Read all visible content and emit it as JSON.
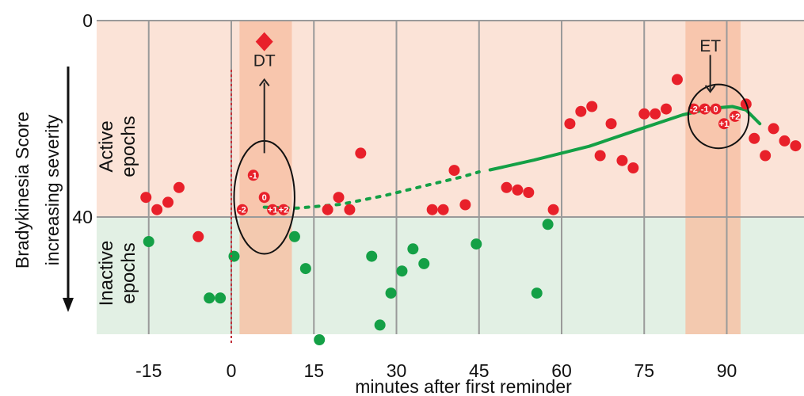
{
  "chart_data": {
    "type": "scatter",
    "xlabel": "minutes after first reminder",
    "ylabel_lines": [
      "Bradykinesia Score",
      "increasing severity"
    ],
    "x_ticks": [
      -15,
      0,
      15,
      30,
      45,
      60,
      75,
      90
    ],
    "xlim": [
      -25,
      104
    ],
    "y_ticks": [
      0,
      40
    ],
    "ylim": [
      76,
      0
    ],
    "y_inverted": true,
    "region_labels": {
      "active": [
        "Active",
        "epochs"
      ],
      "inactive": [
        "Inactive",
        "epochs"
      ]
    },
    "colors": {
      "active_band": "#fbe3d7",
      "inactive_band": "#e2f0e4",
      "highlight_band": "#f7c0a4",
      "active_point": "#e8202a",
      "inactive_point": "#14a046",
      "fit_line": "#14a046",
      "grid": "#9a9a9a"
    },
    "bands": [
      {
        "x_start": 1.5,
        "x_end": 11
      },
      {
        "x_start": 82.5,
        "x_end": 92.5
      }
    ],
    "active_points": [
      {
        "x": -15.5,
        "y": 36
      },
      {
        "x": -13.5,
        "y": 38.5
      },
      {
        "x": -11.5,
        "y": 37
      },
      {
        "x": -9.5,
        "y": 34
      },
      {
        "x": 17.5,
        "y": 38.5
      },
      {
        "x": 19.5,
        "y": 36
      },
      {
        "x": 21.5,
        "y": 38.5
      },
      {
        "x": 23.5,
        "y": 27
      },
      {
        "x": 36.5,
        "y": 38.5
      },
      {
        "x": 38.5,
        "y": 38.5
      },
      {
        "x": 40.5,
        "y": 30.5
      },
      {
        "x": 42.5,
        "y": 37.5
      },
      {
        "x": 50,
        "y": 34
      },
      {
        "x": 52,
        "y": 34.5
      },
      {
        "x": 54,
        "y": 35
      },
      {
        "x": 58.5,
        "y": 38.5
      },
      {
        "x": 61.5,
        "y": 21
      },
      {
        "x": 63.5,
        "y": 18.5
      },
      {
        "x": 65.5,
        "y": 17.5
      },
      {
        "x": 67,
        "y": 27.5
      },
      {
        "x": 69,
        "y": 21
      },
      {
        "x": 71,
        "y": 28.5
      },
      {
        "x": 73,
        "y": 30
      },
      {
        "x": 75,
        "y": 19
      },
      {
        "x": 77,
        "y": 19
      },
      {
        "x": 79,
        "y": 18
      },
      {
        "x": 81,
        "y": 12
      },
      {
        "x": 93.5,
        "y": 17
      },
      {
        "x": 95,
        "y": 24
      },
      {
        "x": 97,
        "y": 27.5
      },
      {
        "x": 98.5,
        "y": 22
      },
      {
        "x": 100.5,
        "y": 24.5
      },
      {
        "x": 102.5,
        "y": 25.5
      },
      {
        "x": -6,
        "y": 44
      }
    ],
    "inactive_points": [
      {
        "x": -15,
        "y": 45
      },
      {
        "x": -4,
        "y": 56.5
      },
      {
        "x": -2,
        "y": 56.5
      },
      {
        "x": 0.5,
        "y": 48
      },
      {
        "x": 11.5,
        "y": 44
      },
      {
        "x": 13.5,
        "y": 50.5
      },
      {
        "x": 16,
        "y": 65
      },
      {
        "x": 25.5,
        "y": 48
      },
      {
        "x": 27,
        "y": 62
      },
      {
        "x": 29,
        "y": 55.5
      },
      {
        "x": 31,
        "y": 51
      },
      {
        "x": 33,
        "y": 46.5
      },
      {
        "x": 35,
        "y": 49.5
      },
      {
        "x": 44.5,
        "y": 45.5
      },
      {
        "x": 55.5,
        "y": 55.5
      },
      {
        "x": 57.5,
        "y": 41.5
      }
    ],
    "numbered_points": [
      {
        "label": "-2",
        "x": 2,
        "y": 38.5
      },
      {
        "label": "-1",
        "x": 4,
        "y": 31.5
      },
      {
        "label": "0",
        "x": 6,
        "y": 36
      },
      {
        "label": "+1",
        "x": 7.5,
        "y": 38.5
      },
      {
        "label": "+2",
        "x": 9.5,
        "y": 38.5
      },
      {
        "label": "-2",
        "x": 84,
        "y": 18
      },
      {
        "label": "-1",
        "x": 86,
        "y": 18
      },
      {
        "label": "0",
        "x": 88,
        "y": 18
      },
      {
        "label": "+1",
        "x": 89.5,
        "y": 21
      },
      {
        "label": "+2",
        "x": 91.5,
        "y": 19.5
      }
    ],
    "fit_dotted": [
      {
        "x": 6,
        "y": 38
      },
      {
        "x": 12,
        "y": 38.2
      },
      {
        "x": 20,
        "y": 37.4
      },
      {
        "x": 28,
        "y": 35.6
      },
      {
        "x": 36,
        "y": 33.4
      },
      {
        "x": 42,
        "y": 31.8
      },
      {
        "x": 45,
        "y": 30.8
      }
    ],
    "fit_solid": [
      {
        "x": 47,
        "y": 30.4
      },
      {
        "x": 55,
        "y": 28.4
      },
      {
        "x": 65,
        "y": 25.6
      },
      {
        "x": 75,
        "y": 21.8
      },
      {
        "x": 82,
        "y": 19.2
      },
      {
        "x": 87,
        "y": 17.9
      },
      {
        "x": 91,
        "y": 17.5
      },
      {
        "x": 93.5,
        "y": 18.2
      },
      {
        "x": 96,
        "y": 21
      }
    ],
    "ellipses": [
      {
        "cx": 6,
        "cy": 36,
        "rx_min": 5.5,
        "ry_score": 11.5
      },
      {
        "cx": 88.5,
        "cy": 19.5,
        "rx_min": 5.5,
        "ry_score": 6.5
      }
    ],
    "annotations": {
      "dt": {
        "label": "DT",
        "x": 6,
        "y_text": 8,
        "arrow_y_from": 27,
        "arrow_y_to": 12
      },
      "et": {
        "label": "ET",
        "x": 87,
        "y_text": 5,
        "arrow_y_from": 7,
        "arrow_y_to": 14.5
      },
      "diamond": {
        "x": 6,
        "y": 4.3
      },
      "onset_line_x": 0
    }
  }
}
